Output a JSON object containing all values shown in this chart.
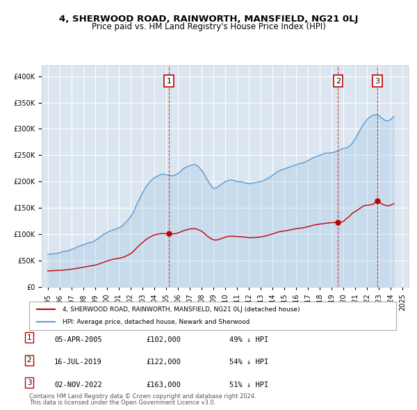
{
  "title": "4, SHERWOOD ROAD, RAINWORTH, MANSFIELD, NG21 0LJ",
  "subtitle": "Price paid vs. HM Land Registry's House Price Index (HPI)",
  "ylabel": "",
  "background_color": "#dce6f0",
  "plot_bg_color": "#dce6f0",
  "fig_bg_color": "#ffffff",
  "red_line_label": "4, SHERWOOD ROAD, RAINWORTH, MANSFIELD, NG21 0LJ (detached house)",
  "blue_line_label": "HPI: Average price, detached house, Newark and Sherwood",
  "transactions": [
    {
      "num": 1,
      "date": "05-APR-2005",
      "price": 102000,
      "pct": "49%",
      "x_year": 2005.26
    },
    {
      "num": 2,
      "date": "16-JUL-2019",
      "price": 122000,
      "pct": "54%",
      "x_year": 2019.54
    },
    {
      "num": 3,
      "date": "02-NOV-2022",
      "price": 163000,
      "pct": "51%",
      "x_year": 2022.84
    }
  ],
  "footer_line1": "Contains HM Land Registry data © Crown copyright and database right 2024.",
  "footer_line2": "This data is licensed under the Open Government Licence v3.0.",
  "hpi_data": {
    "years": [
      1995.0,
      1995.25,
      1995.5,
      1995.75,
      1996.0,
      1996.25,
      1996.5,
      1996.75,
      1997.0,
      1997.25,
      1997.5,
      1997.75,
      1998.0,
      1998.25,
      1998.5,
      1998.75,
      1999.0,
      1999.25,
      1999.5,
      1999.75,
      2000.0,
      2000.25,
      2000.5,
      2000.75,
      2001.0,
      2001.25,
      2001.5,
      2001.75,
      2002.0,
      2002.25,
      2002.5,
      2002.75,
      2003.0,
      2003.25,
      2003.5,
      2003.75,
      2004.0,
      2004.25,
      2004.5,
      2004.75,
      2005.0,
      2005.25,
      2005.5,
      2005.75,
      2006.0,
      2006.25,
      2006.5,
      2006.75,
      2007.0,
      2007.25,
      2007.5,
      2007.75,
      2008.0,
      2008.25,
      2008.5,
      2008.75,
      2009.0,
      2009.25,
      2009.5,
      2009.75,
      2010.0,
      2010.25,
      2010.5,
      2010.75,
      2011.0,
      2011.25,
      2011.5,
      2011.75,
      2012.0,
      2012.25,
      2012.5,
      2012.75,
      2013.0,
      2013.25,
      2013.5,
      2013.75,
      2014.0,
      2014.25,
      2014.5,
      2014.75,
      2015.0,
      2015.25,
      2015.5,
      2015.75,
      2016.0,
      2016.25,
      2016.5,
      2016.75,
      2017.0,
      2017.25,
      2017.5,
      2017.75,
      2018.0,
      2018.25,
      2018.5,
      2018.75,
      2019.0,
      2019.25,
      2019.5,
      2019.75,
      2020.0,
      2020.25,
      2020.5,
      2020.75,
      2021.0,
      2021.25,
      2021.5,
      2021.75,
      2022.0,
      2022.25,
      2022.5,
      2022.75,
      2023.0,
      2023.25,
      2023.5,
      2023.75,
      2024.0,
      2024.25
    ],
    "values": [
      62000,
      62500,
      63000,
      63500,
      65000,
      67000,
      68000,
      69000,
      71000,
      73000,
      76000,
      78000,
      80000,
      82000,
      84000,
      85000,
      88000,
      92000,
      96000,
      100000,
      103000,
      106000,
      108000,
      110000,
      112000,
      115000,
      120000,
      126000,
      133000,
      142000,
      155000,
      167000,
      178000,
      188000,
      196000,
      202000,
      207000,
      210000,
      213000,
      214000,
      213000,
      212000,
      211000,
      212000,
      215000,
      220000,
      225000,
      228000,
      230000,
      232000,
      232000,
      228000,
      222000,
      213000,
      203000,
      194000,
      187000,
      188000,
      192000,
      196000,
      200000,
      202000,
      203000,
      202000,
      200000,
      200000,
      199000,
      197000,
      196000,
      197000,
      198000,
      199000,
      200000,
      202000,
      205000,
      208000,
      212000,
      216000,
      220000,
      222000,
      224000,
      226000,
      228000,
      230000,
      232000,
      234000,
      235000,
      237000,
      240000,
      243000,
      246000,
      248000,
      250000,
      252000,
      254000,
      254000,
      255000,
      256000,
      258000,
      261000,
      263000,
      264000,
      267000,
      273000,
      282000,
      292000,
      302000,
      311000,
      318000,
      323000,
      326000,
      327000,
      325000,
      320000,
      316000,
      315000,
      318000,
      324000
    ]
  },
  "red_data": {
    "years": [
      1995.0,
      1995.25,
      1995.5,
      1995.75,
      1996.0,
      1996.25,
      1996.5,
      1996.75,
      1997.0,
      1997.25,
      1997.5,
      1997.75,
      1998.0,
      1998.25,
      1998.5,
      1998.75,
      1999.0,
      1999.25,
      1999.5,
      1999.75,
      2000.0,
      2000.25,
      2000.5,
      2000.75,
      2001.0,
      2001.25,
      2001.5,
      2001.75,
      2002.0,
      2002.25,
      2002.5,
      2002.75,
      2003.0,
      2003.25,
      2003.5,
      2003.75,
      2004.0,
      2004.25,
      2004.5,
      2004.75,
      2005.0,
      2005.26,
      2005.5,
      2005.75,
      2006.0,
      2006.25,
      2006.5,
      2006.75,
      2007.0,
      2007.25,
      2007.5,
      2007.75,
      2008.0,
      2008.25,
      2008.5,
      2008.75,
      2009.0,
      2009.25,
      2009.5,
      2009.75,
      2010.0,
      2010.25,
      2010.5,
      2010.75,
      2011.0,
      2011.25,
      2011.5,
      2011.75,
      2012.0,
      2012.25,
      2012.5,
      2012.75,
      2013.0,
      2013.25,
      2013.5,
      2013.75,
      2014.0,
      2014.25,
      2014.5,
      2014.75,
      2015.0,
      2015.25,
      2015.5,
      2015.75,
      2016.0,
      2016.25,
      2016.5,
      2016.75,
      2017.0,
      2017.25,
      2017.5,
      2017.75,
      2018.0,
      2018.25,
      2018.5,
      2018.75,
      2019.0,
      2019.25,
      2019.54,
      2019.75,
      2020.0,
      2020.25,
      2020.5,
      2020.75,
      2021.0,
      2021.25,
      2021.5,
      2021.75,
      2022.0,
      2022.25,
      2022.5,
      2022.84,
      2023.0,
      2023.25,
      2023.5,
      2023.75,
      2024.0,
      2024.25
    ],
    "values": [
      30500,
      30700,
      31000,
      31200,
      31500,
      32000,
      32500,
      33000,
      33800,
      34500,
      35500,
      36500,
      37500,
      38500,
      39500,
      40500,
      41500,
      43000,
      45000,
      47000,
      49000,
      51000,
      52500,
      53500,
      54500,
      55500,
      57500,
      60000,
      63000,
      67500,
      73500,
      79000,
      84000,
      89000,
      93000,
      96000,
      98500,
      100000,
      101000,
      101500,
      101000,
      102000,
      100800,
      101000,
      102500,
      104500,
      107000,
      108500,
      110000,
      110800,
      110500,
      108500,
      106000,
      101500,
      96500,
      92500,
      89500,
      89000,
      90500,
      92500,
      94500,
      95800,
      96500,
      96500,
      95500,
      95500,
      95000,
      94500,
      93500,
      93700,
      94000,
      94500,
      95000,
      96000,
      97500,
      99000,
      100500,
      102500,
      104500,
      105500,
      106500,
      107000,
      108500,
      109500,
      110500,
      111500,
      112000,
      113000,
      114500,
      116000,
      117500,
      118500,
      119500,
      120000,
      121000,
      121500,
      122000,
      122300,
      122000,
      123000,
      124500,
      130000,
      134000,
      140000,
      143500,
      147000,
      151000,
      154500,
      155000,
      156000,
      157000,
      163000,
      160500,
      157500,
      155000,
      154000,
      155500,
      158000
    ]
  },
  "ylim": [
    0,
    420000
  ],
  "xlim": [
    1994.5,
    2025.5
  ],
  "yticks": [
    0,
    50000,
    100000,
    150000,
    200000,
    250000,
    300000,
    350000,
    400000
  ],
  "xticks": [
    1995,
    1996,
    1997,
    1998,
    1999,
    2000,
    2001,
    2002,
    2003,
    2004,
    2005,
    2006,
    2007,
    2008,
    2009,
    2010,
    2011,
    2012,
    2013,
    2014,
    2015,
    2016,
    2017,
    2018,
    2019,
    2020,
    2021,
    2022,
    2023,
    2024,
    2025
  ]
}
